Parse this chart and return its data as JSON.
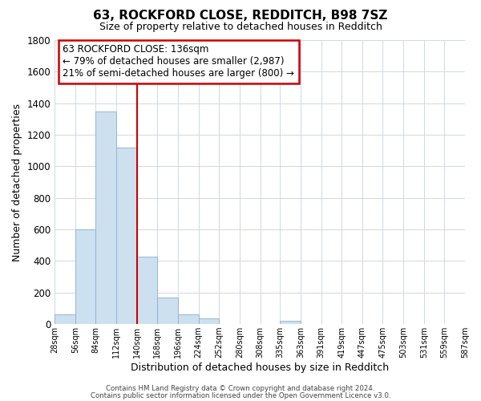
{
  "title": "63, ROCKFORD CLOSE, REDDITCH, B98 7SZ",
  "subtitle": "Size of property relative to detached houses in Redditch",
  "xlabel": "Distribution of detached houses by size in Redditch",
  "ylabel": "Number of detached properties",
  "bin_edges": [
    28,
    56,
    84,
    112,
    140,
    168,
    196,
    224,
    252,
    280,
    308,
    335,
    363,
    391,
    419,
    447,
    475,
    503,
    531,
    559,
    587
  ],
  "bar_heights": [
    60,
    600,
    1350,
    1120,
    430,
    170,
    60,
    35,
    0,
    0,
    0,
    20,
    0,
    0,
    0,
    0,
    0,
    0,
    0,
    0
  ],
  "bar_color": "#cce0f0",
  "bar_edgecolor": "#8ab0cc",
  "reference_line_x": 140,
  "reference_line_color": "#cc0000",
  "annotation_line1": "63 ROCKFORD CLOSE: 136sqm",
  "annotation_line2": "← 79% of detached houses are smaller (2,987)",
  "annotation_line3": "21% of semi-detached houses are larger (800) →",
  "box_edgecolor": "#cc0000",
  "ylim": [
    0,
    1800
  ],
  "yticks": [
    0,
    200,
    400,
    600,
    800,
    1000,
    1200,
    1400,
    1600,
    1800
  ],
  "tick_labels": [
    "28sqm",
    "56sqm",
    "84sqm",
    "112sqm",
    "140sqm",
    "168sqm",
    "196sqm",
    "224sqm",
    "252sqm",
    "280sqm",
    "308sqm",
    "335sqm",
    "363sqm",
    "391sqm",
    "419sqm",
    "447sqm",
    "475sqm",
    "503sqm",
    "531sqm",
    "559sqm",
    "587sqm"
  ],
  "footer_line1": "Contains HM Land Registry data © Crown copyright and database right 2024.",
  "footer_line2": "Contains public sector information licensed under the Open Government Licence v3.0.",
  "background_color": "#ffffff",
  "grid_color": "#d0d8e4"
}
